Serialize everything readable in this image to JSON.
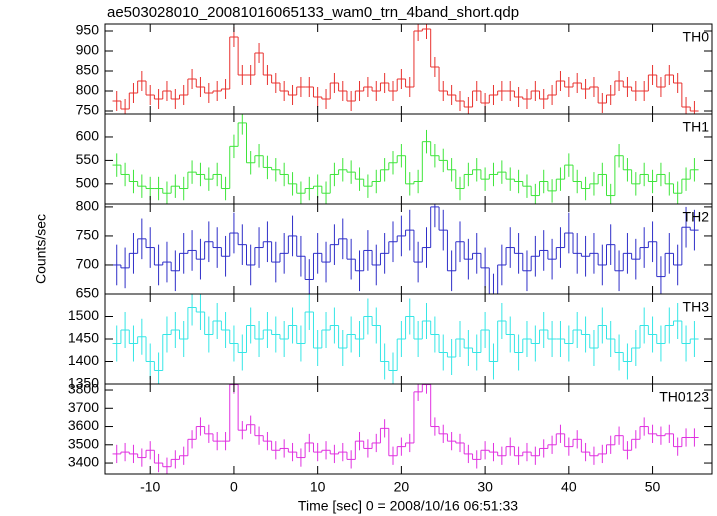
{
  "figure": {
    "title": "ae503028010_20081016065133_wam0_trn_4band_short.qdp",
    "x_label": "Time [sec] 0 = 2008/10/16 06:51:33",
    "y_label": "Counts/sec",
    "x": [
      -14,
      -13,
      -12,
      -11,
      -10,
      -9,
      -8,
      -7,
      -6,
      -5,
      -4,
      -3,
      -2,
      -1,
      0,
      1,
      2,
      3,
      4,
      5,
      6,
      7,
      8,
      9,
      10,
      11,
      12,
      13,
      14,
      15,
      16,
      17,
      18,
      19,
      20,
      21,
      22,
      23,
      24,
      25,
      26,
      27,
      28,
      29,
      30,
      31,
      32,
      33,
      34,
      35,
      36,
      37,
      38,
      39,
      40,
      41,
      42,
      43,
      44,
      45,
      46,
      47,
      48,
      49,
      50,
      51,
      52,
      53,
      54,
      55
    ],
    "bin_width": 1,
    "xlim": [
      -15.4,
      57.1
    ],
    "xticks": [
      -10,
      0,
      10,
      20,
      30,
      40,
      50
    ]
  },
  "chart_data": [
    {
      "type": "step",
      "label": "TH0",
      "color": "#e8312e",
      "ylim": [
        742.5,
        967.5
      ],
      "yticks": [
        750,
        800,
        850,
        900,
        950
      ],
      "error": 25,
      "values": [
        775,
        755,
        795,
        825,
        790,
        780,
        800,
        780,
        790,
        830,
        810,
        795,
        800,
        805,
        935,
        840,
        840,
        895,
        840,
        820,
        800,
        790,
        810,
        810,
        785,
        780,
        820,
        800,
        775,
        800,
        810,
        800,
        820,
        800,
        830,
        810,
        950,
        955,
        860,
        800,
        790,
        775,
        760,
        800,
        770,
        790,
        800,
        800,
        785,
        780,
        800,
        780,
        790,
        825,
        810,
        820,
        805,
        810,
        770,
        790,
        825,
        810,
        800,
        800,
        840,
        810,
        840,
        820,
        760,
        750
      ]
    },
    {
      "type": "step",
      "label": "TH1",
      "color": "#3ee53a",
      "ylim": [
        457,
        649
      ],
      "yticks": [
        500,
        550,
        600
      ],
      "error": 25,
      "values": [
        540,
        520,
        505,
        495,
        490,
        490,
        480,
        495,
        490,
        525,
        520,
        510,
        520,
        490,
        580,
        630,
        545,
        560,
        535,
        530,
        520,
        500,
        480,
        490,
        495,
        480,
        520,
        530,
        525,
        510,
        495,
        505,
        530,
        545,
        560,
        500,
        505,
        590,
        560,
        550,
        530,
        490,
        520,
        530,
        510,
        520,
        525,
        510,
        505,
        495,
        475,
        505,
        485,
        510,
        540,
        505,
        490,
        500,
        520,
        475,
        560,
        530,
        500,
        520,
        505,
        520,
        500,
        480,
        510,
        530
      ]
    },
    {
      "type": "step",
      "label": "TH2",
      "color": "#2e2ec8",
      "ylim": [
        650,
        805
      ],
      "yticks": [
        650,
        700,
        750,
        800
      ],
      "error": 35,
      "values": [
        700,
        695,
        720,
        745,
        730,
        700,
        705,
        690,
        720,
        725,
        710,
        740,
        730,
        715,
        755,
        735,
        700,
        730,
        740,
        705,
        720,
        750,
        715,
        675,
        720,
        705,
        735,
        745,
        710,
        690,
        725,
        700,
        720,
        740,
        750,
        760,
        705,
        730,
        800,
        760,
        690,
        740,
        710,
        720,
        695,
        650,
        700,
        730,
        720,
        690,
        715,
        725,
        710,
        730,
        755,
        720,
        715,
        720,
        700,
        735,
        690,
        720,
        710,
        730,
        740,
        680,
        720,
        700,
        765,
        760
      ]
    },
    {
      "type": "step",
      "label": "TH3",
      "color": "#35e6e6",
      "ylim": [
        1350,
        1550
      ],
      "yticks": [
        1350,
        1400,
        1450,
        1500
      ],
      "error": 40,
      "values": [
        1440,
        1470,
        1440,
        1455,
        1400,
        1380,
        1460,
        1470,
        1450,
        1520,
        1510,
        1460,
        1490,
        1470,
        1440,
        1420,
        1480,
        1450,
        1470,
        1460,
        1450,
        1480,
        1440,
        1510,
        1430,
        1470,
        1480,
        1430,
        1460,
        1450,
        1500,
        1480,
        1400,
        1380,
        1450,
        1500,
        1450,
        1490,
        1460,
        1420,
        1410,
        1450,
        1430,
        1420,
        1470,
        1400,
        1490,
        1460,
        1420,
        1450,
        1440,
        1470,
        1450,
        1450,
        1440,
        1470,
        1460,
        1430,
        1480,
        1450,
        1420,
        1400,
        1430,
        1480,
        1460,
        1440,
        1480,
        1490,
        1440,
        1450
      ]
    },
    {
      "type": "step",
      "label": "TH0123",
      "color": "#e030e0",
      "ylim": [
        3340,
        3833
      ],
      "yticks": [
        3400,
        3500,
        3600,
        3700,
        3800
      ],
      "error": 50,
      "values": [
        3450,
        3460,
        3450,
        3430,
        3470,
        3400,
        3380,
        3420,
        3440,
        3530,
        3600,
        3560,
        3520,
        3520,
        3830,
        3580,
        3610,
        3550,
        3520,
        3470,
        3480,
        3460,
        3430,
        3510,
        3460,
        3470,
        3450,
        3460,
        3420,
        3520,
        3480,
        3510,
        3590,
        3440,
        3490,
        3510,
        3790,
        3830,
        3600,
        3560,
        3520,
        3510,
        3450,
        3420,
        3470,
        3460,
        3440,
        3490,
        3440,
        3460,
        3440,
        3480,
        3500,
        3560,
        3490,
        3530,
        3460,
        3440,
        3450,
        3500,
        3550,
        3470,
        3530,
        3600,
        3560,
        3550,
        3560,
        3490,
        3540,
        3540
      ]
    }
  ]
}
